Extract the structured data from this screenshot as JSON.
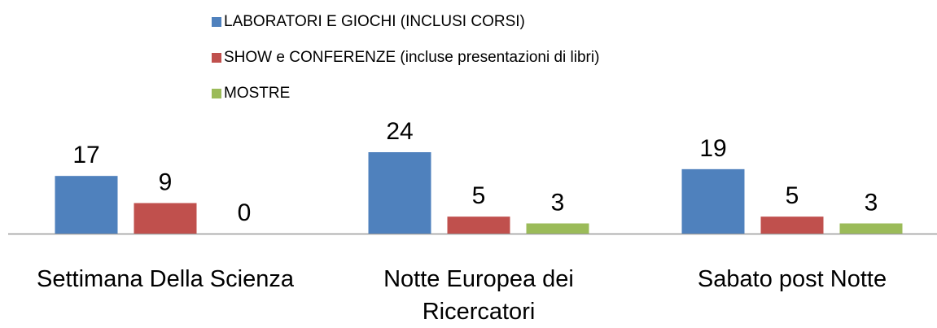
{
  "chart_data": {
    "type": "bar",
    "categories": [
      "Settimana Della Scienza",
      "Notte Europea dei Ricercatori",
      "Sabato post Notte"
    ],
    "series": [
      {
        "name": "LABORATORI E GIOCHI (INCLUSI CORSI)",
        "color": "#4f81bd",
        "values": [
          17,
          24,
          19
        ]
      },
      {
        "name": "SHOW e CONFERENZE (incluse presentazioni di libri)",
        "color": "#c0504d",
        "values": [
          9,
          5,
          5
        ]
      },
      {
        "name": "MOSTRE",
        "color": "#9bbb59",
        "values": [
          0,
          3,
          3
        ]
      }
    ]
  }
}
